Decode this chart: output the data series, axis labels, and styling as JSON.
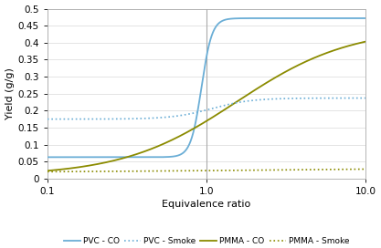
{
  "title": "",
  "xlabel": "Equivalence ratio",
  "ylabel": "Yield (g/g)",
  "xmin": 0.1,
  "xmax": 10,
  "ymin": 0,
  "ymax": 0.5,
  "yticks": [
    0,
    0.05,
    0.1,
    0.15,
    0.2,
    0.25,
    0.3,
    0.35,
    0.4,
    0.45,
    0.5
  ],
  "pvc_co_low": 0.063,
  "pvc_co_high": 0.472,
  "pvc_co_transition": 0.93,
  "pvc_co_steepness": 30,
  "pvc_smoke_low": 0.175,
  "pvc_smoke_high": 0.237,
  "pvc_smoke_transition": 1.08,
  "pvc_smoke_steepness": 8,
  "pmma_co_low": 0.008,
  "pmma_co_high": 0.444,
  "pmma_co_transition": 1.55,
  "pmma_co_steepness": 2.8,
  "pmma_smoke_low": 0.018,
  "pmma_smoke_high": 0.033,
  "pmma_smoke_transition": 3.0,
  "pmma_smoke_steepness": 1.2,
  "color_blue": "#6BAED6",
  "color_olive": "#8B8B00",
  "legend_labels": [
    "PVC - CO",
    "PVC - Smoke",
    "PMMA - CO",
    "PMMA - Smoke"
  ],
  "vline_x": 1.0,
  "vline_color": "#AAAAAA",
  "grid_color": "#D9D9D9",
  "bg_color": "#FFFFFF",
  "spine_color": "#AAAAAA"
}
